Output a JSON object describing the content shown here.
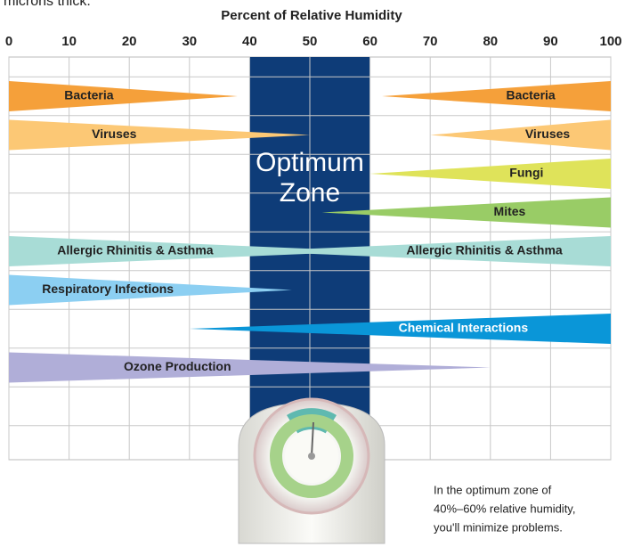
{
  "header_fragment": "microns thick.",
  "chart_data": {
    "type": "wedge",
    "title": "Percent of Relative Humidity",
    "xlim": [
      0,
      100
    ],
    "xticks": [
      0,
      10,
      20,
      30,
      40,
      50,
      60,
      70,
      80,
      90,
      100
    ],
    "grid": true,
    "zone": {
      "label": "Optimum Zone",
      "range": [
        40,
        60
      ],
      "color": "#0e3c78"
    },
    "series": [
      {
        "name": "Bacteria",
        "color": "#f5a03a",
        "wedges": [
          [
            0,
            38
          ],
          [
            100,
            62
          ]
        ]
      },
      {
        "name": "Viruses",
        "color": "#fcc875",
        "wedges": [
          [
            0,
            50
          ],
          [
            100,
            70
          ]
        ]
      },
      {
        "name": "Fungi",
        "color": "#dfe35a",
        "wedges": [
          [
            100,
            60
          ]
        ]
      },
      {
        "name": "Mites",
        "color": "#99cc66",
        "wedges": [
          [
            100,
            52
          ]
        ]
      },
      {
        "name": "Allergic Rhinitis & Asthma",
        "color": "#a8dcd6",
        "wedges": [
          [
            0,
            60
          ],
          [
            100,
            40
          ]
        ]
      },
      {
        "name": "Respiratory Infections",
        "color": "#8ccff2",
        "wedges": [
          [
            0,
            47
          ]
        ]
      },
      {
        "name": "Chemical Interactions",
        "color": "#0a96d8",
        "wedges": [
          [
            100,
            30
          ]
        ]
      },
      {
        "name": "Ozone Production",
        "color": "#b0aed8",
        "wedges": [
          [
            0,
            80
          ]
        ]
      }
    ],
    "annotation": [
      "In the optimum zone of",
      "40%–60% relative humidity,",
      "you'll minimize problems."
    ]
  }
}
